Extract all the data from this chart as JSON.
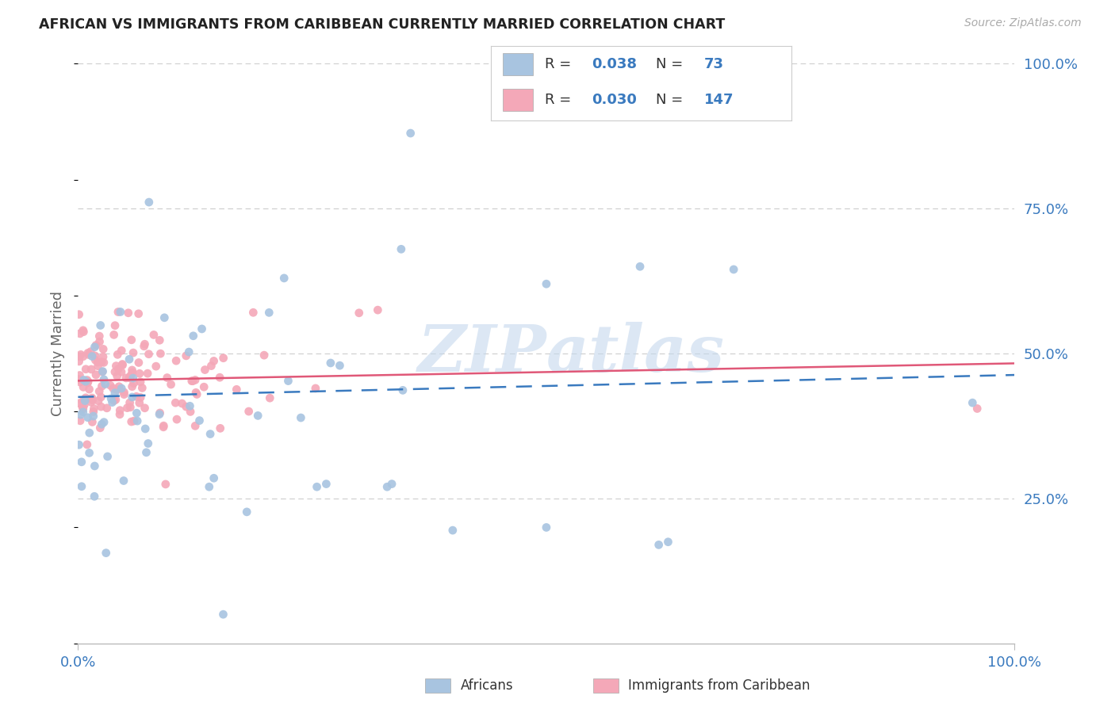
{
  "title": "AFRICAN VS IMMIGRANTS FROM CARIBBEAN CURRENTLY MARRIED CORRELATION CHART",
  "source": "Source: ZipAtlas.com",
  "ylabel": "Currently Married",
  "watermark": "ZIPatlas",
  "legend_R_african": "0.038",
  "legend_N_african": "73",
  "legend_R_caribbean": "0.030",
  "legend_N_caribbean": "147",
  "african_color": "#a8c4e0",
  "caribbean_color": "#f4a8b8",
  "trendline_african_color": "#3a7abf",
  "trendline_caribbean_color": "#e05878",
  "text_blue": "#3a7abf",
  "text_dark": "#444444",
  "grid_color": "#cccccc",
  "seed": 42
}
